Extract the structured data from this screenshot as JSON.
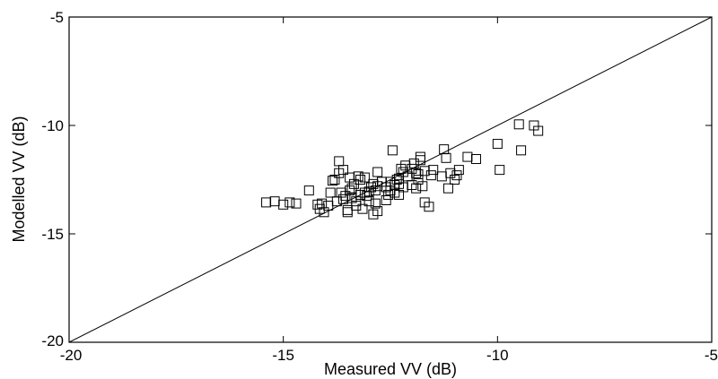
{
  "chart_data": {
    "type": "scatter",
    "title": "",
    "xlabel": "Measured VV (dB)",
    "ylabel": "Modelled VV (dB)",
    "xlim": [
      -20,
      -5
    ],
    "ylim": [
      -20,
      -5
    ],
    "xticks": [
      -20,
      -15,
      -10,
      -5
    ],
    "yticks": [
      -20,
      -15,
      -10,
      -5
    ],
    "xtick_labels": [
      "-20",
      "-15",
      "-10",
      "-5"
    ],
    "ytick_labels": [
      "-20",
      "-15",
      "-10",
      "-5"
    ],
    "grid": false,
    "reference_line": {
      "name": "1:1 line",
      "x": [
        -20,
        -5
      ],
      "y": [
        -20,
        -5
      ]
    },
    "marker": "open-square",
    "series": [
      {
        "x": [
          -15.4,
          -15.2,
          -15.0,
          -14.85,
          -14.7,
          -14.4,
          -14.2,
          -14.15,
          -14.1,
          -14.05,
          -13.95,
          -13.85,
          -13.75,
          -13.7,
          -13.65,
          -13.6,
          -13.6,
          -13.55,
          -13.5,
          -13.5,
          -13.45,
          -13.45,
          -13.4,
          -13.35,
          -13.3,
          -13.3,
          -13.25,
          -13.2,
          -13.2,
          -13.15,
          -13.1,
          -13.1,
          -13.05,
          -13.0,
          -12.95,
          -12.9,
          -12.85,
          -12.85,
          -12.8,
          -12.8,
          -12.6,
          -12.55,
          -12.5,
          -12.45,
          -12.4,
          -12.4,
          -12.35,
          -12.3,
          -12.3,
          -12.25,
          -12.2,
          -12.2,
          -12.15,
          -12.1,
          -12.0,
          -11.95,
          -11.9,
          -11.85,
          -11.85,
          -11.8,
          -11.8,
          -11.75,
          -11.7,
          -11.6,
          -11.55,
          -11.5,
          -11.25,
          -11.2,
          -11.15,
          -11.1,
          -11.0,
          -10.95,
          -10.9,
          -10.7,
          -10.5,
          -10.0,
          -9.95,
          -9.5,
          -9.45,
          -9.15,
          -9.05,
          -12.5,
          -13.7,
          -13.4,
          -13.0,
          -12.7,
          -12.9,
          -13.8,
          -13.9,
          -12.6,
          -12.3,
          -11.9,
          -11.7,
          -11.3,
          -12.0,
          -12.8
        ],
        "y": [
          -13.55,
          -13.5,
          -13.65,
          -13.55,
          -13.6,
          -13.0,
          -13.65,
          -13.85,
          -13.6,
          -14.0,
          -13.7,
          -12.55,
          -13.5,
          -11.65,
          -13.1,
          -12.05,
          -13.4,
          -13.25,
          -14.0,
          -13.9,
          -13.0,
          -12.4,
          -13.35,
          -12.7,
          -13.5,
          -13.7,
          -12.35,
          -12.5,
          -13.2,
          -13.85,
          -13.1,
          -12.4,
          -13.25,
          -13.05,
          -12.85,
          -14.1,
          -13.0,
          -13.6,
          -12.8,
          -13.95,
          -13.45,
          -13.2,
          -12.6,
          -11.15,
          -13.1,
          -12.75,
          -12.5,
          -12.45,
          -13.2,
          -12.0,
          -12.15,
          -12.85,
          -11.85,
          -12.35,
          -12.0,
          -11.75,
          -12.9,
          -12.5,
          -12.25,
          -11.6,
          -11.45,
          -12.8,
          -13.55,
          -13.75,
          -12.3,
          -12.05,
          -11.1,
          -11.5,
          -12.9,
          -12.2,
          -12.5,
          -12.3,
          -12.05,
          -11.45,
          -11.55,
          -10.85,
          -12.05,
          -9.95,
          -11.15,
          -10.0,
          -10.25,
          -13.0,
          -12.2,
          -12.9,
          -13.5,
          -12.6,
          -12.7,
          -12.5,
          -13.1,
          -12.85,
          -12.7,
          -12.2,
          -12.1,
          -12.35,
          -12.75,
          -12.15
        ]
      }
    ]
  }
}
